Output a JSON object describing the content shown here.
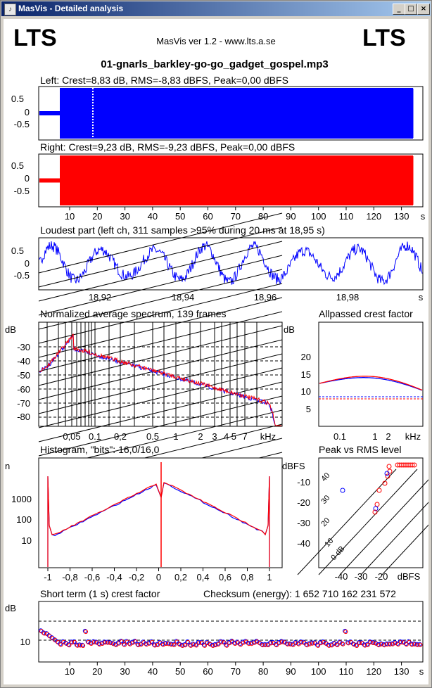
{
  "window": {
    "title": "MasVis - Detailed analysis",
    "minimize_glyph": "_",
    "maximize_glyph": "□",
    "close_glyph": "×",
    "app_icon": "masvis-app-icon"
  },
  "header": {
    "logo_left": "LTS",
    "logo_right": "LTS",
    "app_version": "MasVis ver 1.2 - www.lts.a.se",
    "filename": "01-gnarls_barkley-go-go_gadget_gospel.mp3"
  },
  "colors": {
    "left": "#0000ff",
    "right": "#ff0000",
    "line": "#000000"
  },
  "left_channel": {
    "title": "Left: Crest=8,83 dB, RMS=-8,83 dBFS, Peak=0,00 dBFS"
  },
  "right_channel": {
    "title": "Right: Crest=9,23 dB, RMS=-9,23 dBFS, Peak=0,00 dBFS"
  },
  "wave_yticks": [
    "0.5",
    "0",
    "-0.5"
  ],
  "time_axis": {
    "ticks": [
      "10",
      "20",
      "30",
      "40",
      "50",
      "60",
      "70",
      "80",
      "90",
      "100",
      "110",
      "120",
      "130"
    ],
    "unit": "s"
  },
  "loudest": {
    "title": "Loudest part (left  ch, 311 samples >95% during 20 ms at 18,95 s)",
    "yticks": [
      "0.5",
      "0",
      "-0.5"
    ],
    "xticks": [
      "18,92",
      "18,94",
      "18,96",
      "18,98"
    ],
    "unit": "s"
  },
  "spectrum": {
    "title": "Normalized average spectrum, 139 frames",
    "ylabel": "dB",
    "yticks": [
      "-30",
      "-40",
      "-50",
      "-60",
      "-70",
      "-80"
    ],
    "xticks": [
      "0,05",
      "0.1",
      "0,2",
      "0.5",
      "1",
      "2",
      "3",
      "4 5",
      "7"
    ],
    "unit": "kHz"
  },
  "crest": {
    "title": "Allpassed crest factor",
    "ylabel": "dB",
    "yticks": [
      "20",
      "15",
      "10",
      "5"
    ],
    "xticks": [
      "0.1",
      "1",
      "2"
    ],
    "unit": "kHz"
  },
  "histogram": {
    "title": "Histogram, \"bits\": 16,0/16,0",
    "ylabel": "n",
    "yticks": [
      "1000",
      "100",
      "10"
    ],
    "xticks": [
      "-1",
      "-0,8",
      "-0,6",
      "-0,4",
      "-0,2",
      "0",
      "0,2",
      "0,4",
      "0,6",
      "0,8",
      "1"
    ]
  },
  "peak_rms": {
    "title": "Peak vs RMS level",
    "ylabel": "dBFS",
    "yticks": [
      "-10",
      "-20",
      "-30",
      "-40"
    ],
    "xticks": [
      "-40",
      "-30",
      "-20"
    ],
    "unit": "dBFS",
    "diag_labels": [
      "40",
      "30",
      "20",
      "10",
      "0 dB"
    ]
  },
  "short_term": {
    "title": "Short term (1 s) crest factor",
    "checksum": "Checksum (energy):  1 652 710 162 231 572",
    "ylabel": "dB",
    "ytick": "10",
    "xticks": [
      "10",
      "20",
      "30",
      "40",
      "50",
      "60",
      "70",
      "80",
      "90",
      "100",
      "110",
      "120",
      "130"
    ],
    "unit": "s"
  }
}
